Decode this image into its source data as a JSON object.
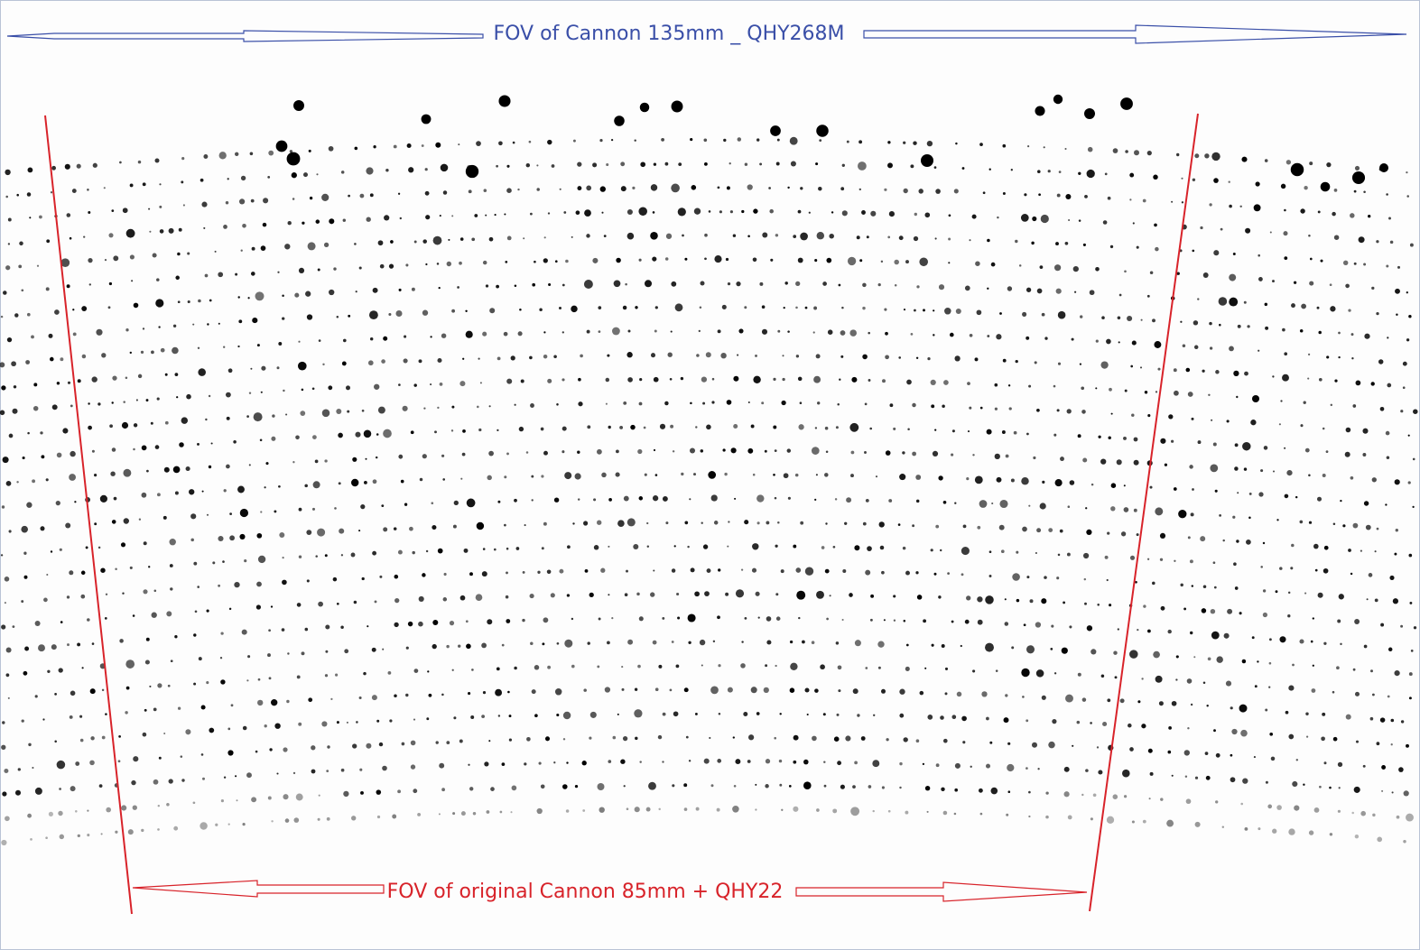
{
  "header": {
    "title": "FOV of Cannon 135mm _ QHY268M"
  },
  "footer": {
    "label": "FOV of original Cannon 85mm + QHY22"
  }
}
